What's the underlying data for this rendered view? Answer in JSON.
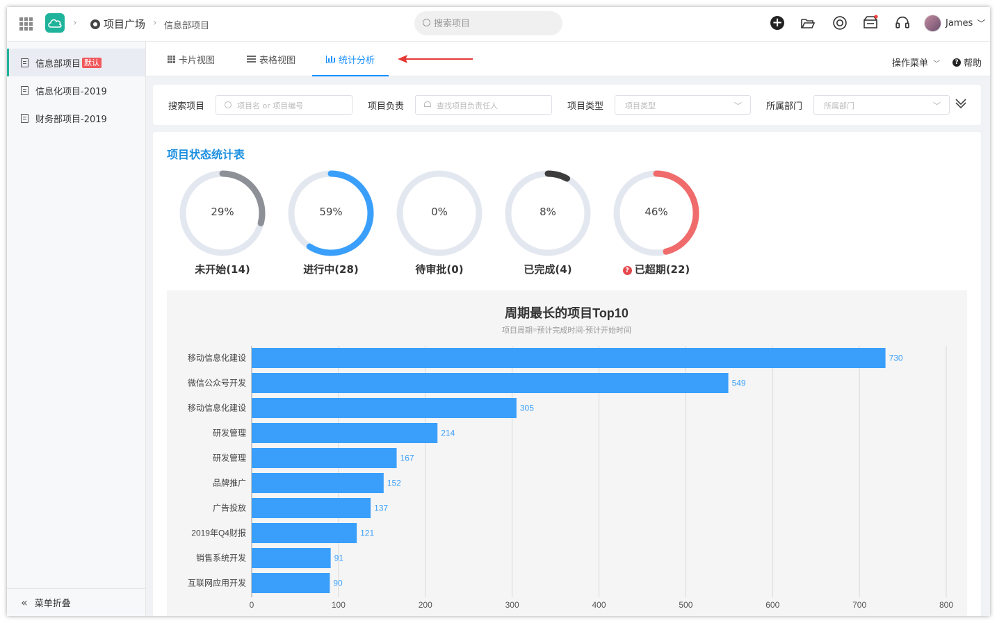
{
  "topbar": {
    "breadcrumb_root": "项目广场",
    "breadcrumb_current": "信息部项目",
    "search_placeholder": "搜索项目",
    "user_name": "James"
  },
  "sidebar": {
    "items": [
      {
        "label": "信息部项目",
        "badge": "默认",
        "active": true
      },
      {
        "label": "信息化项目-2019"
      },
      {
        "label": "财务部项目-2019"
      }
    ],
    "collapse_label": "菜单折叠"
  },
  "tabs": {
    "card_view": "卡片视图",
    "table_view": "表格视图",
    "stats": "统计分析",
    "ops_menu": "操作菜单",
    "help": "帮助"
  },
  "filters": {
    "search_label": "搜索项目",
    "search_placeholder": "项目名 or 项目编号",
    "owner_label": "项目负责",
    "owner_placeholder": "查找项目负责任人",
    "type_label": "项目类型",
    "type_placeholder": "项目类型",
    "dept_label": "所属部门",
    "dept_placeholder": "所属部门"
  },
  "stats": {
    "title": "项目状态统计表",
    "rings": [
      {
        "percent": 29,
        "percent_text": "29%",
        "label": "未开始(14)",
        "color": "#8e9097"
      },
      {
        "percent": 59,
        "percent_text": "59%",
        "label": "进行中(28)",
        "color": "#3a9ffb"
      },
      {
        "percent": 0,
        "percent_text": "0%",
        "label": "待审批(0)",
        "color": "#3a9ffb"
      },
      {
        "percent": 8,
        "percent_text": "8%",
        "label": "已完成(4)",
        "color": "#3d3d3d"
      },
      {
        "percent": 46,
        "percent_text": "46%",
        "label": "已超期(22)",
        "color": "#f06b6b",
        "warning": true
      }
    ],
    "ring_track_color": "#e3e8f0"
  },
  "chart_data": {
    "type": "bar",
    "orientation": "horizontal",
    "title": "周期最长的项目Top10",
    "subtitle": "项目周期=预计完成时间-预计开始时间",
    "categories": [
      "移动信息化建设",
      "微信公众号开发",
      "移动信息化建设",
      "研发管理",
      "研发管理",
      "品牌推广",
      "广告投放",
      "2019年Q4财报",
      "销售系统开发",
      "互联网应用开发"
    ],
    "values": [
      730,
      549,
      305,
      214,
      167,
      152,
      137,
      121,
      91,
      90
    ],
    "xlim": [
      0,
      800
    ],
    "xticks": [
      0,
      100,
      200,
      300,
      400,
      500,
      600,
      700,
      800
    ],
    "bar_color": "#3a9ffb",
    "grid": true
  }
}
